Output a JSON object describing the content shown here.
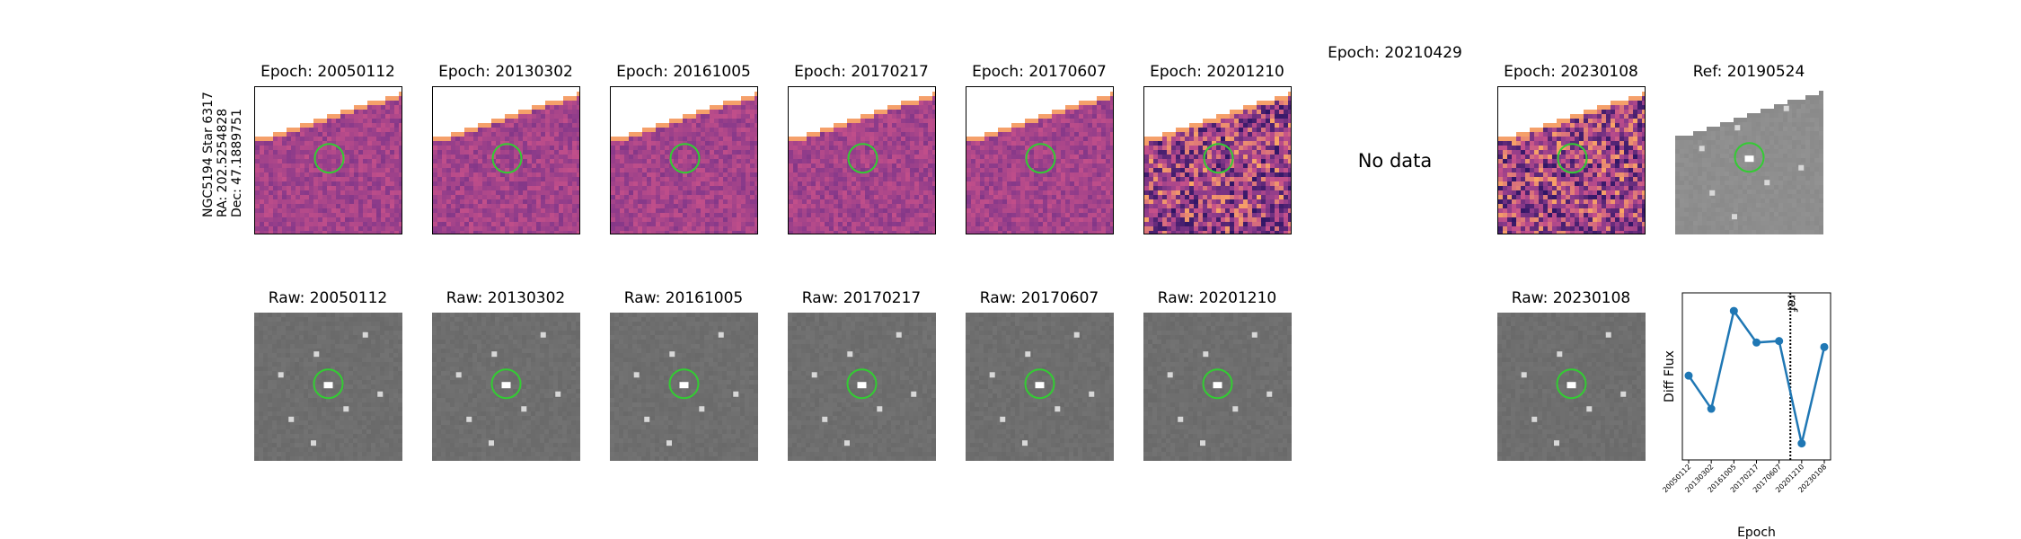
{
  "target_label": {
    "line1": "NGC5194 Star 6317",
    "line2": "RA: 202.5254828",
    "line3": "Dec: 47.1889751"
  },
  "diff_row": [
    {
      "title": "Epoch: 20050112",
      "has_data": true,
      "style": "diff-old"
    },
    {
      "title": "Epoch: 20130302",
      "has_data": true,
      "style": "diff-old"
    },
    {
      "title": "Epoch: 20161005",
      "has_data": true,
      "style": "diff-old"
    },
    {
      "title": "Epoch: 20170217",
      "has_data": true,
      "style": "diff-old"
    },
    {
      "title": "Epoch: 20170607",
      "has_data": true,
      "style": "diff-old"
    },
    {
      "title": "Epoch: 20201210",
      "has_data": true,
      "style": "diff-noisy"
    },
    {
      "title": "Epoch: 20210429",
      "has_data": false,
      "nodata_text": "No data"
    },
    {
      "title": "Epoch: 20230108",
      "has_data": true,
      "style": "diff-noisy2"
    },
    {
      "title": "Ref: 20190524",
      "has_data": true,
      "style": "ref"
    }
  ],
  "raw_row": [
    {
      "title": "Raw: 20050112"
    },
    {
      "title": "Raw: 20130302"
    },
    {
      "title": "Raw: 20161005"
    },
    {
      "title": "Raw: 20170217"
    },
    {
      "title": "Raw: 20170607"
    },
    {
      "title": "Raw: 20201210"
    },
    {
      "title": "Raw: 20230108"
    }
  ],
  "colors": {
    "circle": "#33cc33",
    "line": "#1f77b4",
    "diff_base": "#b5457e",
    "raw_base": "#6e6e6e"
  },
  "chart_data": {
    "type": "line",
    "xlabel": "Epoch",
    "ylabel": "Diff Flux",
    "categories": [
      "20050112",
      "20130302",
      "20161005",
      "20170217",
      "20170607",
      "20201210",
      "20230108"
    ],
    "series": [
      {
        "values": [
          0.45,
          0.23,
          0.88,
          0.67,
          0.68,
          0.0,
          0.64
        ]
      }
    ],
    "ylim": [
      -0.11,
      1.0
    ],
    "ref_line": {
      "label": "ref",
      "position": "between 20170607 and 20201210"
    },
    "grid": false
  }
}
